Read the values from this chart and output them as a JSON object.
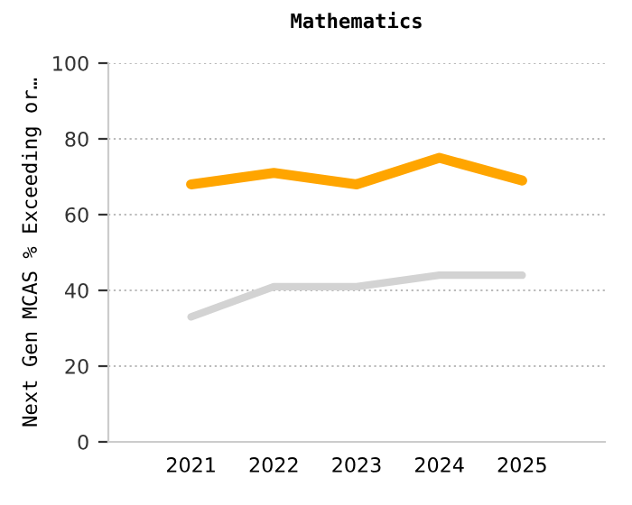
{
  "chart_data": {
    "type": "line",
    "title": "Mathematics",
    "ylabel": "Next Gen MCAS % Exceeding or…",
    "categories": [
      "2021",
      "2022",
      "2023",
      "2024",
      "2025"
    ],
    "series": [
      {
        "color": "#ffa500",
        "values": [
          68,
          71,
          68,
          75,
          69
        ]
      },
      {
        "color": "#d3d3d3",
        "values": [
          33,
          41,
          41,
          44,
          44
        ]
      }
    ],
    "ylim": [
      0,
      100
    ],
    "yticks": [
      0,
      20,
      40,
      60,
      80,
      100
    ],
    "grid": "y",
    "legend": false,
    "marker": "none",
    "line_style": "solid"
  }
}
